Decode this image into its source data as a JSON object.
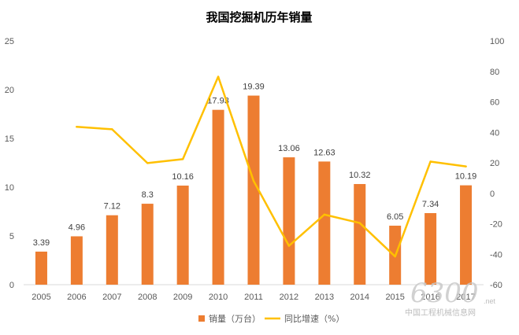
{
  "chart_data": {
    "type": "bar",
    "title": "我国挖掘机历年销量",
    "categories": [
      "2005",
      "2006",
      "2007",
      "2008",
      "2009",
      "2010",
      "2011",
      "2012",
      "2013",
      "2014",
      "2015",
      "2016",
      "2017"
    ],
    "ylim": [
      0,
      25
    ],
    "y_ticks": [
      "0",
      "5",
      "10",
      "15",
      "20",
      "25"
    ],
    "y2lim": [
      -60,
      100
    ],
    "y2_ticks": [
      "-60",
      "-40",
      "-20",
      "0",
      "20",
      "40",
      "60",
      "80",
      "100"
    ],
    "grid": false,
    "legend_position": "bottom",
    "series": [
      {
        "name": "销量（万台）",
        "type": "bar",
        "axis": "left",
        "color": "#ED7D31",
        "values": [
          3.39,
          4.96,
          7.12,
          8.3,
          10.16,
          17.93,
          19.39,
          13.06,
          12.63,
          10.32,
          6.05,
          7.34,
          10.19
        ],
        "labels": [
          "3.39",
          "4.96",
          "7.12",
          "8.3",
          "10.16",
          "17.93",
          "19.39",
          "13.06",
          "12.63",
          "10.32",
          "6.05",
          "7.34",
          "10.19"
        ]
      },
      {
        "name": "同比增速（%）",
        "type": "line",
        "axis": "right",
        "color": "#FFC000",
        "values": [
          null,
          43.6,
          42.0,
          19.8,
          22.4,
          76.5,
          8.1,
          -34.5,
          -14.0,
          -19.5,
          -41.5,
          20.8,
          17.6
        ]
      }
    ]
  },
  "watermark": {
    "number": "6300",
    "suffix": ".net",
    "text": "中国工程机械信息网"
  }
}
